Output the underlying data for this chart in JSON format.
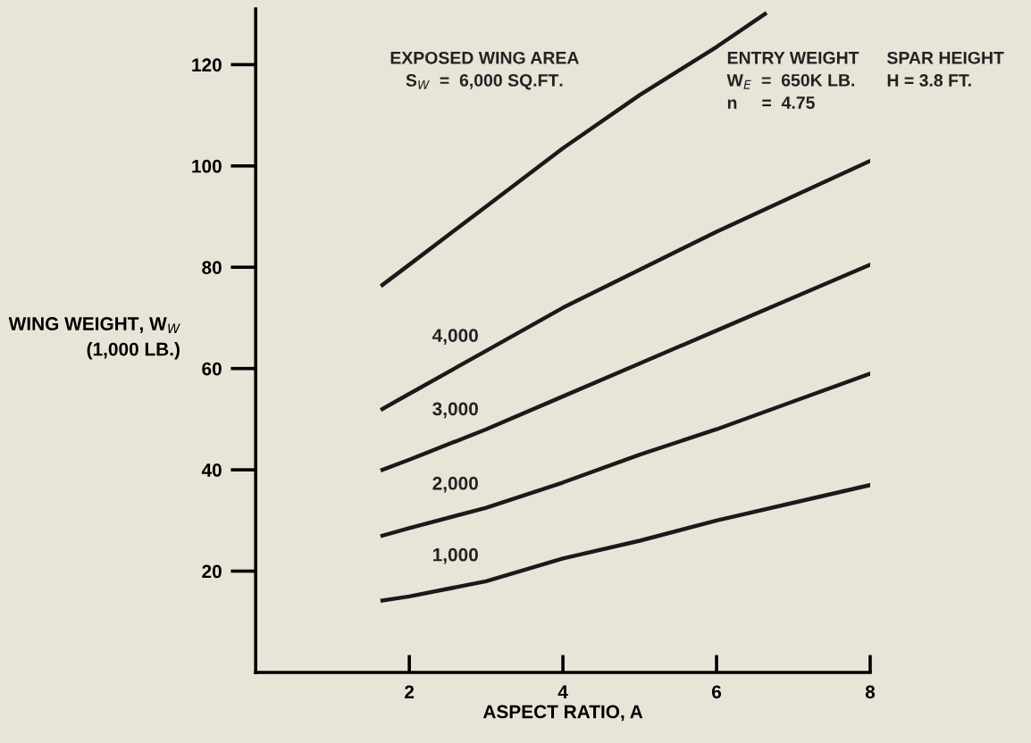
{
  "chart_data": {
    "type": "line",
    "xlabel": "ASPECT RATIO, A",
    "ylabel": "WING WEIGHT, W$_{W}$\n(1,000 LB.)",
    "xlim": [
      0,
      8
    ],
    "ylim": [
      0,
      131
    ],
    "xticks": [
      2,
      4,
      6,
      8
    ],
    "yticks": [
      20,
      40,
      60,
      80,
      100,
      120
    ],
    "grid": false,
    "legend": false,
    "marker": "none",
    "line_style": "solid",
    "series": [
      {
        "name": "1,000",
        "color": "#1a1a1a",
        "x": [
          1.65,
          2,
          3,
          4,
          5,
          6,
          7,
          8
        ],
        "values": [
          14.2,
          15,
          18,
          22.5,
          26,
          30,
          33.5,
          37
        ]
      },
      {
        "name": "2,000",
        "color": "#1a1a1a",
        "x": [
          1.65,
          2,
          3,
          4,
          5,
          6,
          7,
          8
        ],
        "values": [
          27,
          28.5,
          32.5,
          37.5,
          43,
          48,
          53.5,
          59
        ]
      },
      {
        "name": "3,000",
        "color": "#1a1a1a",
        "x": [
          1.65,
          2,
          3,
          4,
          5,
          6,
          7,
          8
        ],
        "values": [
          40,
          42,
          48,
          54.5,
          61,
          67.5,
          74,
          80.5
        ]
      },
      {
        "name": "4,000",
        "color": "#1a1a1a",
        "x": [
          1.65,
          2,
          3,
          4,
          5,
          6,
          7,
          8
        ],
        "values": [
          52,
          55,
          63.5,
          72,
          79.5,
          87,
          94,
          101
        ]
      },
      {
        "color": "#1a1a1a",
        "x": [
          1.65,
          2,
          3,
          4,
          5,
          6,
          6.63
        ],
        "values": [
          76.5,
          80.5,
          92,
          103.5,
          114,
          123.5,
          130
        ]
      }
    ],
    "annotations": [
      "EXPOSED WING AREA\nS$_{W}$  =  6,000 SQ.FT.",
      "ENTRY WEIGHT\nW$_{E}$  =  650K LB.\nn     =  4.75",
      "SPAR HEIGHT\nH = 3.8 FT."
    ]
  }
}
